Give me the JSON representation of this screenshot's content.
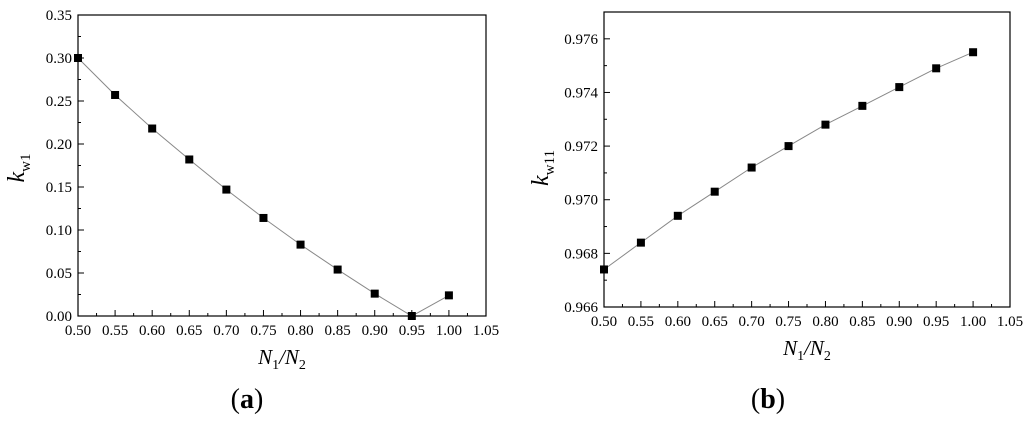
{
  "chart_data": [
    {
      "type": "line",
      "panel": "a",
      "caption": "(a)",
      "caption_letter": "a",
      "xlabel_main": "N",
      "xlabel_sub1": "1",
      "xlabel_slash": "/N",
      "xlabel_sub2": "2",
      "ylabel_main": "k",
      "ylabel_sub": "w1",
      "xlim": [
        0.5,
        1.05
      ],
      "ylim": [
        0.0,
        0.35
      ],
      "xticks": [
        "0.50",
        "0.55",
        "0.60",
        "0.65",
        "0.70",
        "0.75",
        "0.80",
        "0.85",
        "0.90",
        "0.95",
        "1.00",
        "1.05"
      ],
      "yticks": [
        "0.00",
        "0.05",
        "0.10",
        "0.15",
        "0.20",
        "0.25",
        "0.30",
        "0.35"
      ],
      "x": [
        0.5,
        0.55,
        0.6,
        0.65,
        0.7,
        0.75,
        0.8,
        0.85,
        0.9,
        0.95,
        1.0
      ],
      "y": [
        0.3,
        0.257,
        0.218,
        0.182,
        0.147,
        0.114,
        0.083,
        0.054,
        0.026,
        0.0,
        0.024
      ],
      "line_color": "#888888",
      "marker_color": "#000000"
    },
    {
      "type": "line",
      "panel": "b",
      "caption": "(b)",
      "caption_letter": "b",
      "xlabel_main": "N",
      "xlabel_sub1": "1",
      "xlabel_slash": "/N",
      "xlabel_sub2": "2",
      "ylabel_main": "k",
      "ylabel_sub": "w11",
      "xlim": [
        0.5,
        1.05
      ],
      "ylim": [
        0.966,
        0.977
      ],
      "xticks": [
        "0.50",
        "0.55",
        "0.60",
        "0.65",
        "0.70",
        "0.75",
        "0.80",
        "0.85",
        "0.90",
        "0.95",
        "1.00",
        "1.05"
      ],
      "yticks": [
        "0.966",
        "0.968",
        "0.970",
        "0.972",
        "0.974",
        "0.976"
      ],
      "x": [
        0.5,
        0.55,
        0.6,
        0.65,
        0.7,
        0.75,
        0.8,
        0.85,
        0.9,
        0.95,
        1.0
      ],
      "y": [
        0.9674,
        0.9684,
        0.9694,
        0.9703,
        0.9712,
        0.972,
        0.9728,
        0.9735,
        0.9742,
        0.9749,
        0.9755
      ],
      "line_color": "#888888",
      "marker_color": "#000000"
    }
  ]
}
